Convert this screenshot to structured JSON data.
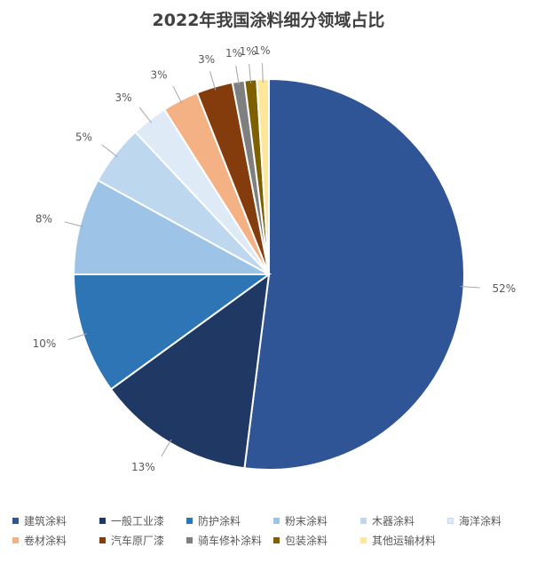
{
  "chart_data": {
    "type": "pie",
    "title": "2022年我国涂料细分领域占比",
    "legend_position": "bottom",
    "slices": [
      {
        "name": "建筑涂料",
        "value": 52,
        "label": "52%",
        "color": "#2F5597"
      },
      {
        "name": "一般工业漆",
        "value": 13,
        "label": "13%",
        "color": "#203864"
      },
      {
        "name": "防护涂料",
        "value": 10,
        "label": "10%",
        "color": "#2E75B6"
      },
      {
        "name": "粉末涂料",
        "value": 8,
        "label": "8%",
        "color": "#9DC3E6"
      },
      {
        "name": "木器涂料",
        "value": 5,
        "label": "5%",
        "color": "#BDD7EE"
      },
      {
        "name": "海洋涂料",
        "value": 3,
        "label": "3%",
        "color": "#DEEBF7"
      },
      {
        "name": "卷材涂料",
        "value": 3,
        "label": "3%",
        "color": "#F4B183"
      },
      {
        "name": "汽车原厂漆",
        "value": 3,
        "label": "3%",
        "color": "#843C0C"
      },
      {
        "name": "骑车修补涂料",
        "value": 1,
        "label": "1%",
        "color": "#7F7F7F"
      },
      {
        "name": "包装涂料",
        "value": 1,
        "label": "1%",
        "color": "#7F6000"
      },
      {
        "name": "其他运输材料",
        "value": 1,
        "label": "1%",
        "color": "#FFE699"
      }
    ]
  }
}
